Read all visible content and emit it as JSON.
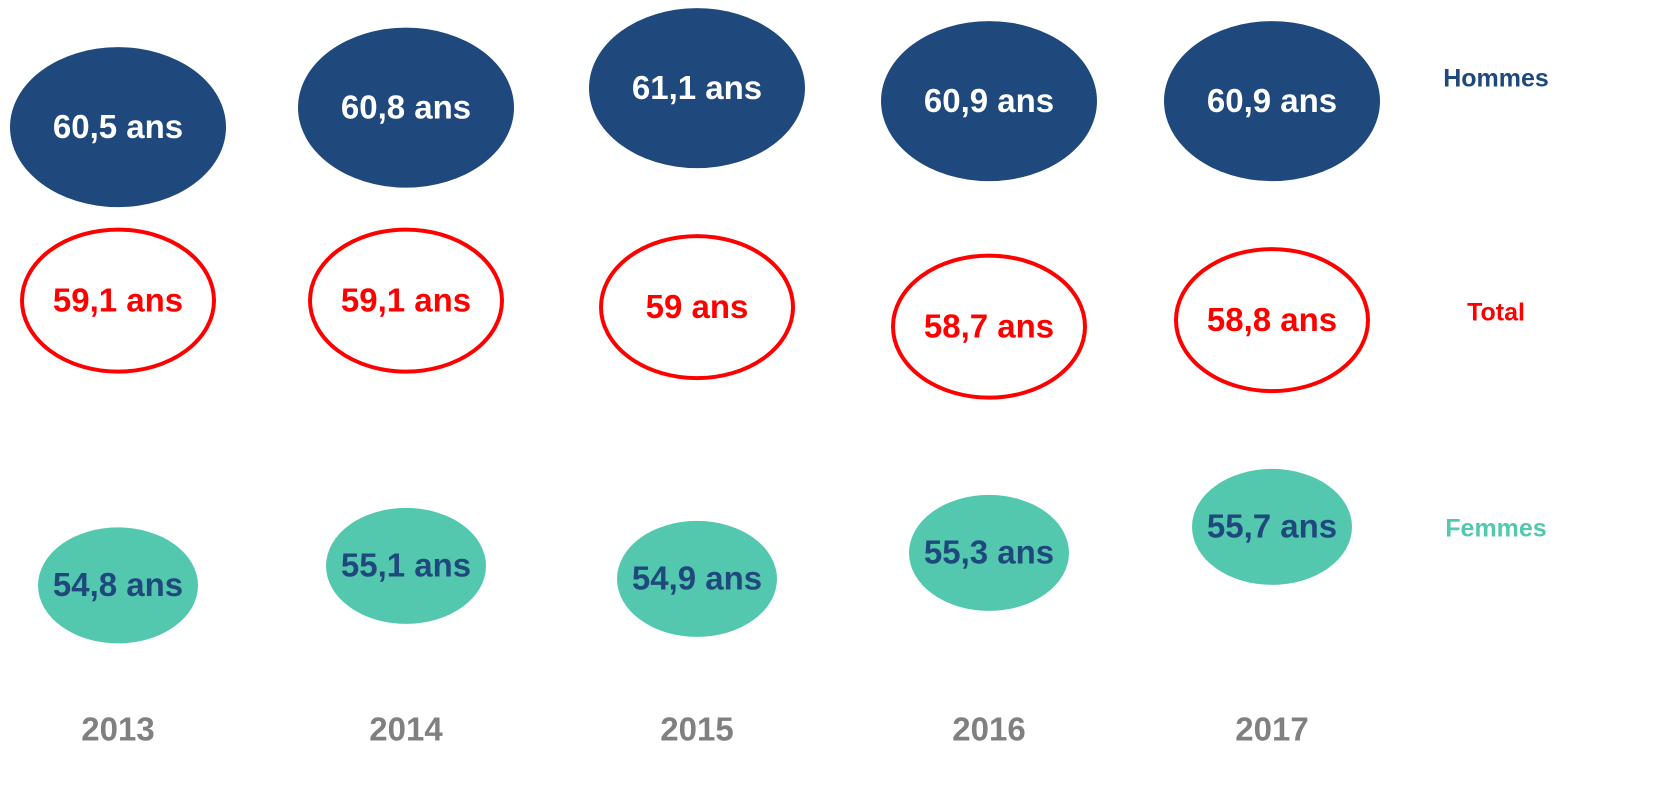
{
  "chart_data": {
    "type": "scatter",
    "categories": [
      "2013",
      "2014",
      "2015",
      "2016",
      "2017"
    ],
    "series": [
      {
        "name": "Hommes",
        "color": "#1f497d",
        "label_color": "#ffffff",
        "values": [
          60.5,
          60.8,
          61.1,
          60.9,
          60.9
        ],
        "value_labels": [
          "60,5 ans",
          "60,8 ans",
          "61,1 ans",
          "60,9 ans",
          "60,9 ans"
        ]
      },
      {
        "name": "Total",
        "color": "#ff0000",
        "label_color": "#ff0000",
        "values": [
          59.1,
          59.1,
          59,
          58.7,
          58.8
        ],
        "value_labels": [
          "59,1 ans",
          "59,1 ans",
          "59 ans",
          "58,7 ans",
          "58,8 ans"
        ]
      },
      {
        "name": "Femmes",
        "color": "#53c8ae",
        "label_color": "#1f497d",
        "values": [
          54.8,
          55.1,
          54.9,
          55.3,
          55.7
        ],
        "value_labels": [
          "54,8 ans",
          "55,1 ans",
          "54,9 ans",
          "55,3 ans",
          "55,7 ans"
        ]
      }
    ]
  }
}
